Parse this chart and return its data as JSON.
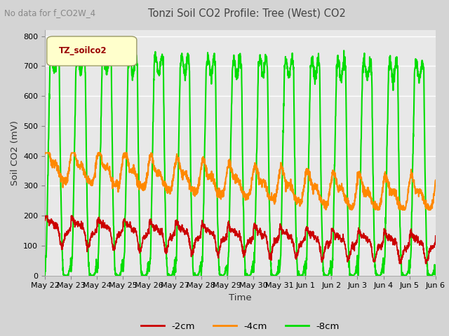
{
  "title": "Tonzi Soil CO2 Profile: Tree (West) CO2",
  "subtitle": "No data for f_CO2W_4",
  "ylabel": "Soil CO2 (mV)",
  "xlabel": "Time",
  "legend_label": "TZ_soilco2",
  "ylim": [
    0,
    820
  ],
  "yticks": [
    0,
    100,
    200,
    300,
    400,
    500,
    600,
    700,
    800
  ],
  "fig_bg_color": "#d4d4d4",
  "plot_bg_color": "#e8e8e8",
  "line_colors": {
    "2cm": "#cc0000",
    "4cm": "#ff8800",
    "8cm": "#00dd00"
  },
  "line_widths": {
    "2cm": 1.3,
    "4cm": 1.5,
    "8cm": 1.5
  },
  "xticklabels": [
    "May 22",
    "May 23",
    "May 24",
    "May 25",
    "May 26",
    "May 27",
    "May 28",
    "May 29",
    "May 30",
    "May 31",
    "Jun 1",
    "Jun 2",
    "Jun 3",
    "Jun 4",
    "Jun 5",
    "Jun 6"
  ],
  "num_points": 2000,
  "days": 15
}
